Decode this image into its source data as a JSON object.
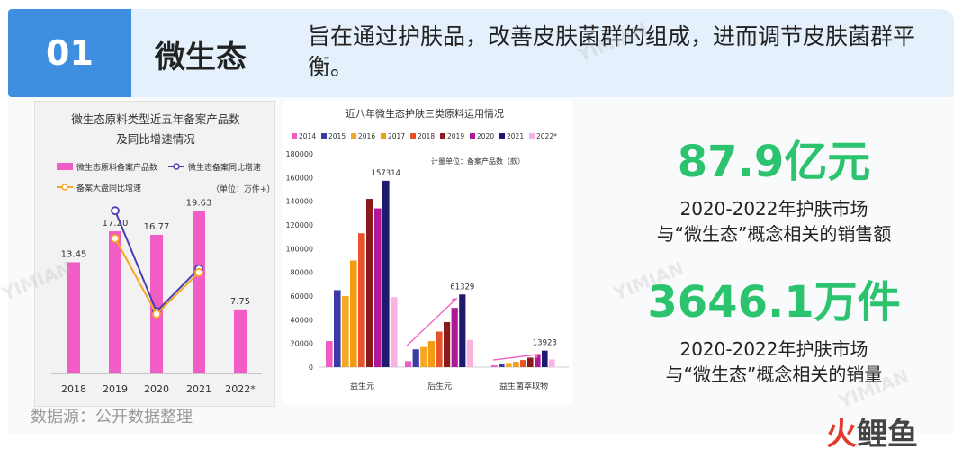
{
  "header": {
    "number": "01",
    "title": "微生态",
    "description": "旨在通过护肤品，改善皮肤菌群的组成，进而调节皮肤菌群平衡。"
  },
  "source": "数据源：公开数据整理",
  "stats": [
    {
      "value": "87.9亿元",
      "line1": "2020-2022年护肤市场",
      "line2": "与“微生态”概念相关的销售额"
    },
    {
      "value": "3646.1万件",
      "line1": "2020-2022年护肤市场",
      "line2": "与“微生态”概念相关的销量"
    }
  ],
  "logo": {
    "part1": "火",
    "part2": "鲤鱼"
  },
  "watermark": "YIMIAN",
  "colors": {
    "accent_blue": "#3f8fe0",
    "green": "#2cc36f",
    "pink": "#f25cc5",
    "purple": "#4a3fb0",
    "orange": "#f5a623"
  },
  "chart_data": [
    {
      "type": "bar",
      "title_line1": "微生态原料类型近五年备案产品数",
      "title_line2": "及同比增速情况",
      "unit": "（单位：万件+）",
      "categories": [
        "2018",
        "2019",
        "2020",
        "2021",
        "2022*"
      ],
      "series": [
        {
          "name": "微生态原料备案产品数",
          "kind": "bar",
          "color": "#f25cc5",
          "values": [
            13.45,
            17.2,
            16.77,
            19.63,
            7.75
          ],
          "labels": [
            "13.45",
            "17.20",
            "16.77",
            "19.63",
            "7.75"
          ],
          "label_color": "#333333"
        },
        {
          "name": "微生态备案同比增速",
          "kind": "line",
          "color": "#4a3fb0",
          "values": [
            null,
            0.92,
            0.12,
            0.46,
            null
          ]
        },
        {
          "name": "备案大盘同比增速",
          "kind": "line",
          "color": "#f5a623",
          "values": [
            null,
            0.7,
            0.1,
            0.43,
            null
          ]
        }
      ],
      "ylim": [
        0,
        30
      ]
    },
    {
      "type": "bar",
      "title": "近八年微生态护肤三类原料运用情况",
      "unit": "计量单位：备案产品数（款）",
      "categories": [
        "益生元",
        "后生元",
        "益生菌萃取物"
      ],
      "yticks": [
        "0",
        "20000",
        "40000",
        "60000",
        "80000",
        "100000",
        "120000",
        "140000",
        "160000",
        "180000"
      ],
      "ylim": [
        0,
        180000
      ],
      "series": [
        {
          "name": "2014",
          "color": "#f25cc5",
          "values": [
            22000,
            5000,
            1500
          ]
        },
        {
          "name": "2015",
          "color": "#3b3ba5",
          "values": [
            65000,
            15000,
            3000
          ]
        },
        {
          "name": "2016",
          "color": "#f5a623",
          "values": [
            60000,
            17000,
            3500
          ]
        },
        {
          "name": "2017",
          "color": "#f39c12",
          "values": [
            90000,
            22000,
            4500
          ]
        },
        {
          "name": "2018",
          "color": "#e8532b",
          "values": [
            113000,
            30000,
            6000
          ]
        },
        {
          "name": "2019",
          "color": "#8b1a1a",
          "values": [
            142000,
            38000,
            8000
          ]
        },
        {
          "name": "2020",
          "color": "#b0189a",
          "values": [
            134000,
            50000,
            11000
          ]
        },
        {
          "name": "2021",
          "color": "#1f1a6e",
          "values": [
            157314,
            61329,
            13923
          ]
        },
        {
          "name": "2022*",
          "color": "#f9b2e2",
          "values": [
            59000,
            23000,
            6500
          ]
        }
      ],
      "annotations": [
        "157314",
        "61329",
        "13923"
      ]
    }
  ]
}
